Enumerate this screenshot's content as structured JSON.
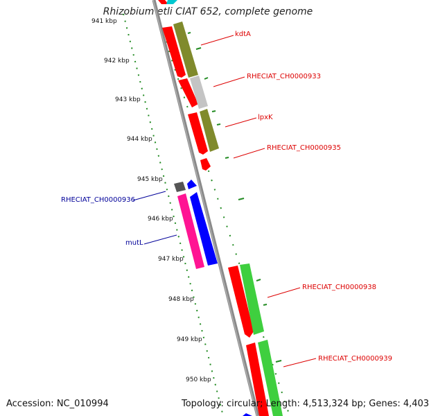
{
  "title": "Rhizobium etli CIAT 652, complete genome",
  "footer": {
    "accession": "Accession: NC_010994",
    "topology": "Topology: circular; Length: 4,513,324 bp; Genes: 4,403"
  },
  "ticks": [
    "941 kbp",
    "942 kbp",
    "943 kbp",
    "944 kbp",
    "945 kbp",
    "946 kbp",
    "947 kbp",
    "948 kbp",
    "949 kbp",
    "950 kbp"
  ],
  "genes_forward": [
    {
      "label": "kdtA",
      "color": "#dd0000"
    },
    {
      "label": "RHECIAT_CH0000933",
      "color": "#dd0000"
    },
    {
      "label": "lpxK",
      "color": "#dd0000"
    },
    {
      "label": "RHECIAT_CH0000935",
      "color": "#dd0000"
    },
    {
      "label": "RHECIAT_CH0000938",
      "color": "#dd0000"
    },
    {
      "label": "RHECIAT_CH0000939",
      "color": "#dd0000"
    }
  ],
  "genes_reverse": [
    {
      "label": "RHECIAT_CH0000936",
      "color": "#000099"
    },
    {
      "label": "mutL",
      "color": "#000099"
    }
  ],
  "colors": {
    "forward_cds": "#ff0000",
    "reverse_cds": "#0000ff",
    "forward_gene": "#808a2c",
    "forward_gene_alt": "#3fcf3f",
    "reverse_gene": "#ff1493",
    "backbone": "#8a8a8a",
    "tick_dots": "#228b22"
  }
}
